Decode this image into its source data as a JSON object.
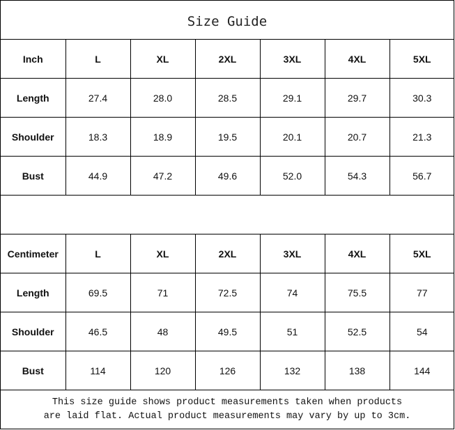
{
  "title": "Size Guide",
  "tables": [
    {
      "unit": "Inch",
      "sizes": [
        "L",
        "XL",
        "2XL",
        "3XL",
        "4XL",
        "5XL"
      ],
      "rows": [
        {
          "label": "Length",
          "values": [
            "27.4",
            "28.0",
            "28.5",
            "29.1",
            "29.7",
            "30.3"
          ]
        },
        {
          "label": "Shoulder",
          "values": [
            "18.3",
            "18.9",
            "19.5",
            "20.1",
            "20.7",
            "21.3"
          ]
        },
        {
          "label": "Bust",
          "values": [
            "44.9",
            "47.2",
            "49.6",
            "52.0",
            "54.3",
            "56.7"
          ]
        }
      ]
    },
    {
      "unit": "Centimeter",
      "sizes": [
        "L",
        "XL",
        "2XL",
        "3XL",
        "4XL",
        "5XL"
      ],
      "rows": [
        {
          "label": "Length",
          "values": [
            "69.5",
            "71",
            "72.5",
            "74",
            "75.5",
            "77"
          ]
        },
        {
          "label": "Shoulder",
          "values": [
            "46.5",
            "48",
            "49.5",
            "51",
            "52.5",
            "54"
          ]
        },
        {
          "label": "Bust",
          "values": [
            "114",
            "120",
            "126",
            "132",
            "138",
            "144"
          ]
        }
      ]
    }
  ],
  "note": {
    "line1": "This size guide shows product measurements taken when products",
    "line2": "are laid flat. Actual product measurements may vary by up to 3cm."
  }
}
